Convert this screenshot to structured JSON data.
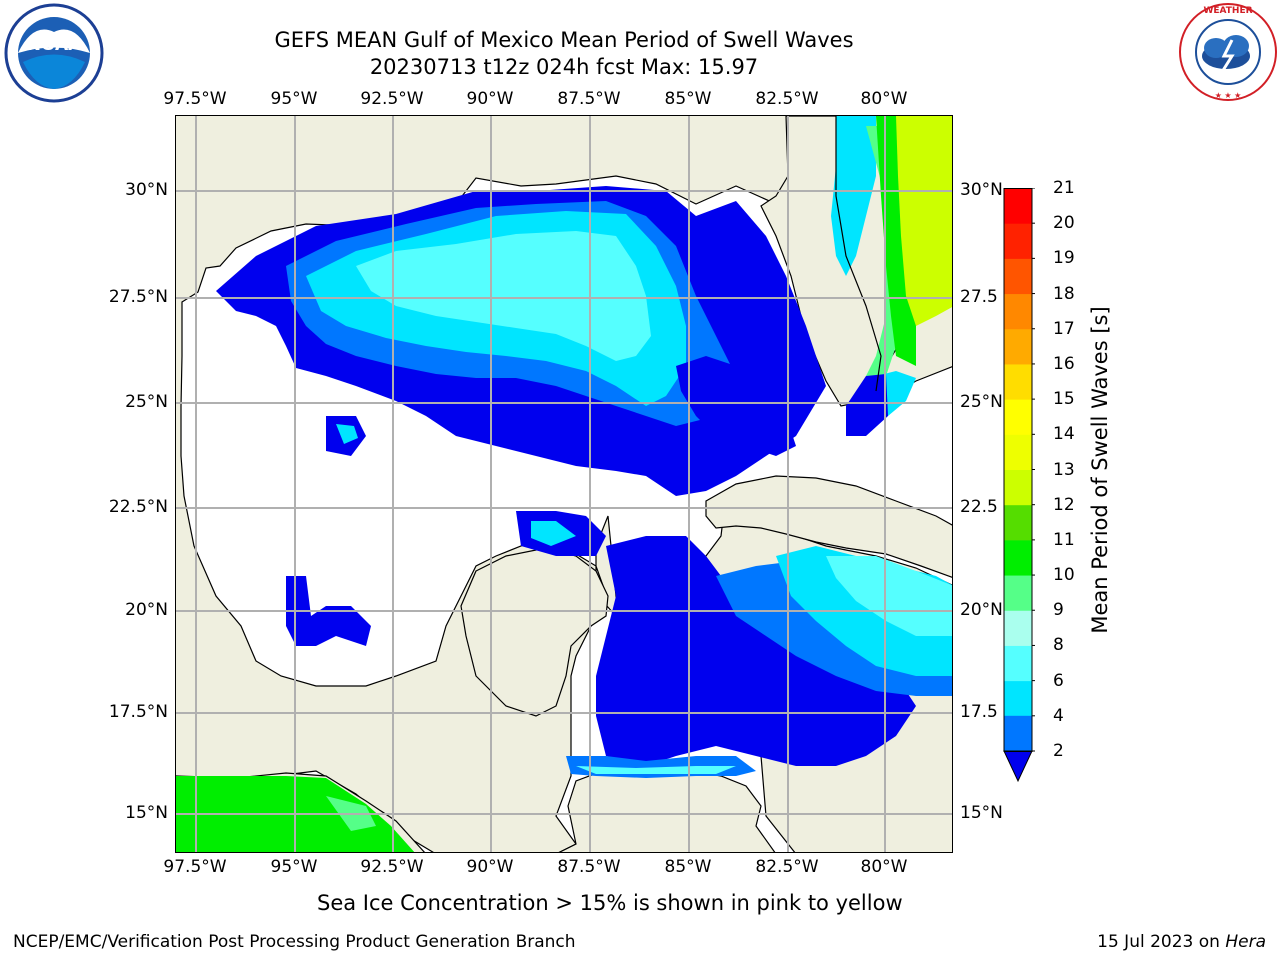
{
  "header": {
    "title": "GEFS MEAN Gulf of Mexico Mean Period of Swell Waves",
    "subtitle": "20230713 t12z 024h fcst   Max: 15.97"
  },
  "map": {
    "lon_labels_top": [
      "97.5°W",
      "95°W",
      "92.5°W",
      "90°W",
      "87.5°W",
      "85°W",
      "82.5°W",
      "80°W"
    ],
    "lon_labels_bottom": [
      "97.5°W",
      "95°W",
      "92.5°W",
      "90°W",
      "87.5°W",
      "85°W",
      "82.5°W",
      "80°W"
    ],
    "lat_labels_left": [
      "30°N",
      "27.5°N",
      "25°N",
      "22.5°N",
      "20°N",
      "17.5°N",
      "15°N"
    ],
    "lat_labels_right": [
      "30°N",
      "27.5",
      "25°N",
      "22.5",
      "20°N",
      "17.5",
      "15°N"
    ],
    "colors": {
      "land": "#efefdf",
      "ocean": "#ffffff",
      "grid": "#b0b0b0"
    }
  },
  "colorbar": {
    "label": "Mean Period of Swell Waves [s]",
    "ticks": [
      "2",
      "4",
      "6",
      "8",
      "9",
      "10",
      "11",
      "12",
      "13",
      "14",
      "15",
      "16",
      "17",
      "18",
      "19",
      "20",
      "21"
    ],
    "colors": [
      "#0000ee",
      "#0077ff",
      "#00e5ff",
      "#55ffff",
      "#aaffee",
      "#55ff88",
      "#00ee00",
      "#55dd00",
      "#ccff00",
      "#eeff00",
      "#ffff00",
      "#ffdd00",
      "#ffaa00",
      "#ff8800",
      "#ff5500",
      "#ff2200",
      "#ff0000"
    ]
  },
  "note": "Sea Ice Concentration > 15% is shown in pink to yellow",
  "footer": {
    "left": "NCEP/EMC/Verification Post Processing Product Generation Branch",
    "date": "15 Jul 2023 on ",
    "host": "Hera"
  },
  "logos": {
    "left": {
      "text": "NOAA",
      "icon": "noaa-logo-icon"
    },
    "right": {
      "text": "NATIONAL WEATHER SERVICE",
      "icon": "nws-logo-icon"
    }
  }
}
